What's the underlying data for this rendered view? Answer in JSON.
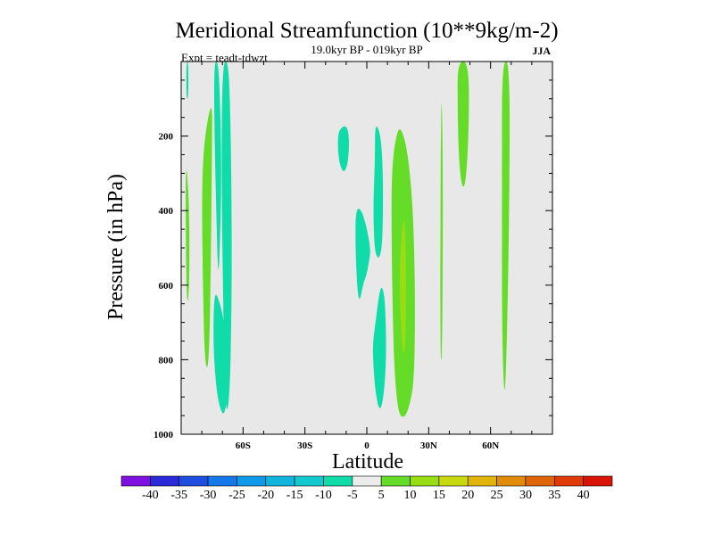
{
  "chart_data": {
    "type": "heatmap",
    "title": "Meridional Streamfunction (10**9kg/m-2)",
    "subtitle": "19.0kyr BP - 019kyr BP",
    "left_label": "Expt = teadt-tdwzt",
    "right_label": "JJA",
    "xlabel": "Latitude",
    "ylabel": "Pressure (in hPa)",
    "xlim": [
      -90,
      90
    ],
    "ylim": [
      1000,
      0
    ],
    "x_ticks": [
      {
        "value": -60,
        "label": "60S"
      },
      {
        "value": -30,
        "label": "30S"
      },
      {
        "value": 0,
        "label": "0"
      },
      {
        "value": 30,
        "label": "30N"
      },
      {
        "value": 60,
        "label": "60N"
      }
    ],
    "y_ticks": [
      {
        "value": 200,
        "label": "200"
      },
      {
        "value": 400,
        "label": "400"
      },
      {
        "value": 600,
        "label": "600"
      },
      {
        "value": 800,
        "label": "800"
      },
      {
        "value": 1000,
        "label": "1000"
      }
    ],
    "background_color": "#e8e8e8",
    "colorbar": {
      "levels": [
        "-40",
        "-35",
        "-30",
        "-25",
        "-20",
        "-15",
        "-10",
        "-5",
        "5",
        "10",
        "15",
        "20",
        "25",
        "30",
        "35",
        "40"
      ],
      "colors": [
        "#7e10e0",
        "#2a2ad8",
        "#1e4ee0",
        "#1478e8",
        "#0e9ae8",
        "#10b4dc",
        "#14c8d0",
        "#10dcaa",
        "#ececec",
        "#64dc28",
        "#98dc14",
        "#c8d80e",
        "#e0b40a",
        "#e08c08",
        "#e06408",
        "#e03a06",
        "#d81406"
      ]
    },
    "contours": [
      {
        "level": "-5",
        "color": "#10dcaa",
        "lat": [
          -87.5,
          -87.5,
          -86.5,
          -86.5
        ],
        "p": [
          0,
          100,
          100,
          0
        ]
      },
      {
        "level": "-5",
        "color": "#10dcaa",
        "lat": [
          -74,
          -71,
          -68.5,
          -67,
          -67.5,
          -69,
          -71,
          -73,
          -74.5
        ],
        "p": [
          610,
          650,
          720,
          800,
          890,
          950,
          935,
          880,
          760
        ]
      },
      {
        "level": "-5",
        "color": "#10dcaa",
        "lat": [
          -74,
          -72,
          -71,
          -70.5,
          -71,
          -72,
          -73,
          -74
        ],
        "p": [
          0,
          0,
          130,
          300,
          450,
          600,
          400,
          150
        ]
      },
      {
        "level": "-5",
        "color": "#10dcaa",
        "lat": [
          -70,
          -67,
          -66,
          -65.5,
          -65.5,
          -66.5,
          -68.5,
          -69.5,
          -70.5
        ],
        "p": [
          0,
          0,
          180,
          400,
          650,
          910,
          950,
          700,
          300
        ]
      },
      {
        "level": "-5",
        "color": "#10dcaa",
        "lat": [
          -13,
          -10,
          -8.5,
          -9,
          -11,
          -13,
          -14,
          -14
        ],
        "p": [
          180,
          170,
          200,
          270,
          300,
          280,
          240,
          200
        ]
      },
      {
        "level": "-5",
        "color": "#10dcaa",
        "lat": [
          -5.5,
          -2,
          2,
          1,
          -0.5,
          -1.5,
          -4,
          -5.5
        ],
        "p": [
          390,
          400,
          500,
          540,
          580,
          590,
          660,
          520
        ]
      },
      {
        "level": "-5",
        "color": "#10dcaa",
        "lat": [
          4,
          7,
          8,
          7.5,
          4,
          3,
          4
        ],
        "p": [
          160,
          200,
          330,
          520,
          530,
          400,
          260
        ]
      },
      {
        "level": "-5",
        "color": "#10dcaa",
        "lat": [
          4,
          6,
          7.5,
          9,
          9.5,
          8,
          6,
          4,
          3,
          3
        ],
        "p": [
          710,
          620,
          600,
          650,
          800,
          910,
          940,
          880,
          800,
          750
        ]
      },
      {
        "level": "5",
        "color": "#64dc28",
        "lat": [
          -88,
          -86,
          -86,
          -87.5
        ],
        "p": [
          240,
          380,
          620,
          660
        ]
      },
      {
        "level": "5",
        "color": "#64dc28",
        "lat": [
          -79,
          -76,
          -75,
          -75,
          -75.5,
          -76.5,
          -78.5,
          -79.5,
          -80
        ],
        "p": [
          220,
          120,
          130,
          180,
          500,
          820,
          820,
          600,
          350
        ]
      },
      {
        "level": "5",
        "color": "#64dc28",
        "lat": [
          12,
          15,
          17.5,
          20,
          22.5,
          23.5,
          23,
          21,
          18,
          15,
          13,
          12
        ],
        "p": [
          280,
          175,
          190,
          250,
          400,
          650,
          850,
          920,
          960,
          940,
          800,
          500
        ]
      },
      {
        "level": "5",
        "color": "#64dc28",
        "lat": [
          36,
          37,
          36.5,
          35.5
        ],
        "p": [
          0,
          320,
          820,
          780
        ]
      },
      {
        "level": "5",
        "color": "#64dc28",
        "lat": [
          44,
          49.5,
          49.5,
          48,
          46,
          44.5,
          44
        ],
        "p": [
          0,
          0,
          180,
          330,
          340,
          250,
          120
        ]
      },
      {
        "level": "5",
        "color": "#64dc28",
        "lat": [
          65.5,
          69.5,
          69,
          67.5,
          66.5,
          65.5,
          65.5
        ],
        "p": [
          0,
          0,
          450,
          850,
          900,
          700,
          300
        ]
      },
      {
        "level": "10",
        "color": "#98dc14",
        "lat": [
          16,
          18,
          19,
          19,
          17.5,
          16
        ],
        "p": [
          520,
          400,
          500,
          750,
          800,
          650
        ]
      }
    ]
  }
}
